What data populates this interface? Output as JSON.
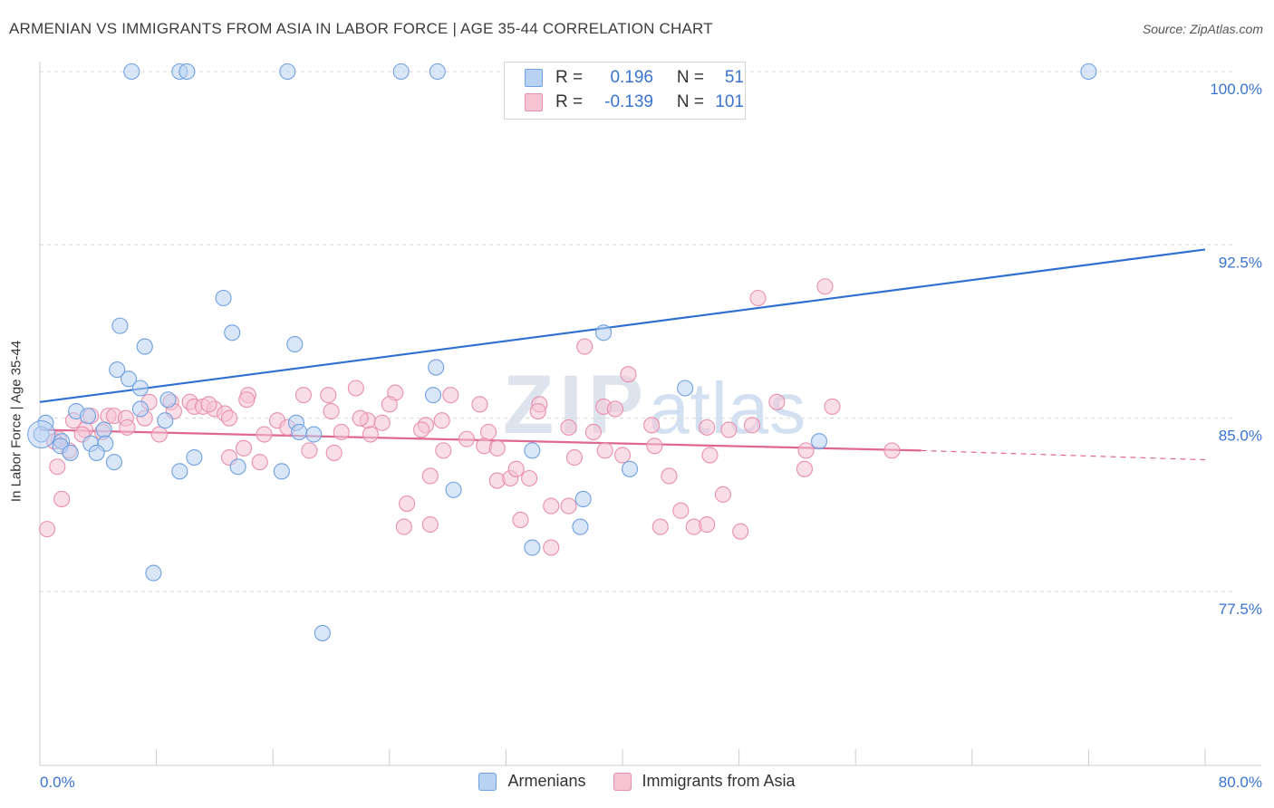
{
  "title": "ARMENIAN VS IMMIGRANTS FROM ASIA IN LABOR FORCE | AGE 35-44 CORRELATION CHART",
  "source": "Source: ZipAtlas.com",
  "watermark": {
    "zip": "ZIP",
    "atlas": "atlas"
  },
  "legend": {
    "rows": [
      {
        "r_label": "R =",
        "r_value": "0.196",
        "n_label": "N =",
        "n_value": "51"
      },
      {
        "r_label": "R =",
        "r_value": "-0.139",
        "n_label": "N =",
        "n_value": "101"
      }
    ]
  },
  "chart_data": {
    "type": "scatter",
    "title": "ARMENIAN VS IMMIGRANTS FROM ASIA IN LABOR FORCE | AGE 35-44 CORRELATION CHART",
    "xlabel": "",
    "ylabel": "In Labor Force | Age 35-44",
    "xlim": [
      0,
      80
    ],
    "ylim": [
      70.5,
      101.5
    ],
    "x_tick_labels": [
      "0.0%",
      "80.0%"
    ],
    "y_ticks": [
      77.5,
      85.0,
      92.5,
      100.0
    ],
    "y_tick_labels": [
      "77.5%",
      "85.0%",
      "92.5%",
      "100.0%"
    ],
    "grid": "horizontal dashed",
    "legend_position": "bottom-center",
    "series": [
      {
        "name": "Armenians",
        "color": "#6fa0e0",
        "fill": "#b9d1f3",
        "r": 0.196,
        "n": 51,
        "trend": {
          "x0": 0,
          "y0": 85.7,
          "x1": 80,
          "y1": 92.3,
          "color": "#2e6fd0"
        },
        "points": [
          [
            6.3,
            100
          ],
          [
            9.6,
            100
          ],
          [
            10.1,
            100
          ],
          [
            17.0,
            100
          ],
          [
            24.8,
            100
          ],
          [
            27.3,
            100
          ],
          [
            32.6,
            100
          ],
          [
            72.0,
            100
          ],
          [
            12.6,
            90.2
          ],
          [
            5.5,
            89.0
          ],
          [
            13.2,
            88.7
          ],
          [
            7.2,
            88.1
          ],
          [
            17.5,
            88.2
          ],
          [
            38.7,
            88.7
          ],
          [
            27.2,
            87.2
          ],
          [
            5.3,
            87.1
          ],
          [
            6.1,
            86.7
          ],
          [
            6.9,
            86.3
          ],
          [
            44.3,
            86.3
          ],
          [
            27.0,
            86.0
          ],
          [
            8.8,
            85.8
          ],
          [
            6.9,
            85.4
          ],
          [
            0.4,
            84.8
          ],
          [
            2.5,
            85.3
          ],
          [
            3.3,
            85.1
          ],
          [
            8.6,
            84.9
          ],
          [
            17.6,
            84.8
          ],
          [
            4.4,
            84.5
          ],
          [
            17.8,
            84.4
          ],
          [
            18.8,
            84.3
          ],
          [
            1.5,
            84.0
          ],
          [
            1.4,
            83.8
          ],
          [
            3.5,
            83.9
          ],
          [
            4.5,
            83.9
          ],
          [
            2.1,
            83.5
          ],
          [
            3.9,
            83.5
          ],
          [
            5.1,
            83.1
          ],
          [
            10.6,
            83.3
          ],
          [
            13.6,
            82.9
          ],
          [
            33.8,
            83.6
          ],
          [
            9.6,
            82.7
          ],
          [
            16.6,
            82.7
          ],
          [
            40.5,
            82.8
          ],
          [
            28.4,
            81.9
          ],
          [
            37.3,
            81.5
          ],
          [
            37.1,
            80.3
          ],
          [
            33.8,
            79.4
          ],
          [
            7.8,
            78.3
          ],
          [
            19.4,
            75.7
          ],
          [
            0.1,
            84.3
          ],
          [
            53.5,
            84.0
          ]
        ]
      },
      {
        "name": "Immigrants from Asia",
        "color": "#e88fad",
        "fill": "#f6c3d3",
        "r": -0.139,
        "n": 101,
        "trend": {
          "x0": 0,
          "y0": 84.5,
          "x1": 60.5,
          "y1": 83.6,
          "dash_to_x": 80,
          "dash_to_y": 83.2,
          "color": "#e0688f"
        },
        "points": [
          [
            49.3,
            90.2
          ],
          [
            53.9,
            90.7
          ],
          [
            37.4,
            88.1
          ],
          [
            40.4,
            86.9
          ],
          [
            21.7,
            86.3
          ],
          [
            28.2,
            86.0
          ],
          [
            18.1,
            86.0
          ],
          [
            14.3,
            86.0
          ],
          [
            24.4,
            86.1
          ],
          [
            7.5,
            85.7
          ],
          [
            9.0,
            85.7
          ],
          [
            10.3,
            85.7
          ],
          [
            14.2,
            85.8
          ],
          [
            24.0,
            85.6
          ],
          [
            30.2,
            85.6
          ],
          [
            34.3,
            85.6
          ],
          [
            10.6,
            85.5
          ],
          [
            11.2,
            85.5
          ],
          [
            12.0,
            85.4
          ],
          [
            9.2,
            85.3
          ],
          [
            12.7,
            85.2
          ],
          [
            20.0,
            85.3
          ],
          [
            4.7,
            85.1
          ],
          [
            5.1,
            85.1
          ],
          [
            5.9,
            85.0
          ],
          [
            3.5,
            85.1
          ],
          [
            7.2,
            85.0
          ],
          [
            13.0,
            85.0
          ],
          [
            16.3,
            84.9
          ],
          [
            22.5,
            84.9
          ],
          [
            23.5,
            84.8
          ],
          [
            26.5,
            84.7
          ],
          [
            38.7,
            85.5
          ],
          [
            50.6,
            85.7
          ],
          [
            54.4,
            85.5
          ],
          [
            3.1,
            84.5
          ],
          [
            2.9,
            84.3
          ],
          [
            4.3,
            84.4
          ],
          [
            6.0,
            84.6
          ],
          [
            8.2,
            84.3
          ],
          [
            15.4,
            84.3
          ],
          [
            17.0,
            84.6
          ],
          [
            20.7,
            84.4
          ],
          [
            22.7,
            84.3
          ],
          [
            26.2,
            84.5
          ],
          [
            29.3,
            84.1
          ],
          [
            30.8,
            84.4
          ],
          [
            36.3,
            84.6
          ],
          [
            38.0,
            84.4
          ],
          [
            42.0,
            84.7
          ],
          [
            45.8,
            84.6
          ],
          [
            47.3,
            84.5
          ],
          [
            1.3,
            84.1
          ],
          [
            2.0,
            83.6
          ],
          [
            27.7,
            83.6
          ],
          [
            30.5,
            83.8
          ],
          [
            36.7,
            83.3
          ],
          [
            38.8,
            83.6
          ],
          [
            40.0,
            83.4
          ],
          [
            46.0,
            83.4
          ],
          [
            52.6,
            83.6
          ],
          [
            58.5,
            83.6
          ],
          [
            34.2,
            85.3
          ],
          [
            20.2,
            83.5
          ],
          [
            13.0,
            83.3
          ],
          [
            15.1,
            83.1
          ],
          [
            1.2,
            82.9
          ],
          [
            26.8,
            82.5
          ],
          [
            31.4,
            82.3
          ],
          [
            32.3,
            82.4
          ],
          [
            33.6,
            82.4
          ],
          [
            43.2,
            82.5
          ],
          [
            52.5,
            82.8
          ],
          [
            32.7,
            82.8
          ],
          [
            46.9,
            81.7
          ],
          [
            25.2,
            81.3
          ],
          [
            35.1,
            81.2
          ],
          [
            36.3,
            81.2
          ],
          [
            44.0,
            81.0
          ],
          [
            26.8,
            80.4
          ],
          [
            33.0,
            80.6
          ],
          [
            25.0,
            80.3
          ],
          [
            42.6,
            80.3
          ],
          [
            44.9,
            80.3
          ],
          [
            45.8,
            80.4
          ],
          [
            48.1,
            80.1
          ],
          [
            35.1,
            79.4
          ],
          [
            0.5,
            80.2
          ],
          [
            1.5,
            81.5
          ],
          [
            18.5,
            83.6
          ],
          [
            42.2,
            83.8
          ],
          [
            2.3,
            84.9
          ],
          [
            11.6,
            85.6
          ],
          [
            39.5,
            85.4
          ],
          [
            31.4,
            83.7
          ],
          [
            48.9,
            84.7
          ],
          [
            27.6,
            84.9
          ],
          [
            14.0,
            83.7
          ],
          [
            1.0,
            84.0
          ],
          [
            19.8,
            86.0
          ],
          [
            22.0,
            85.0
          ]
        ]
      }
    ]
  }
}
